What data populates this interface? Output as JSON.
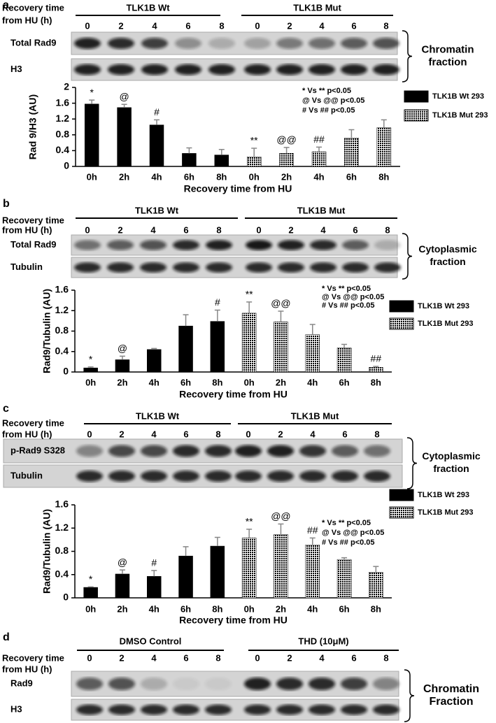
{
  "panel_labels": [
    "a",
    "b",
    "c",
    "d"
  ],
  "blots": [
    {
      "groups": [
        "TLK1B Wt",
        "TLK1B Mut"
      ],
      "time_header": [
        "Recovery time",
        "from HU (h)"
      ],
      "lanes": [
        "0",
        "2",
        "4",
        "6",
        "8"
      ],
      "rows": [
        "Total Rad9",
        "H3"
      ],
      "fraction": [
        "Chromatin",
        "fraction"
      ]
    },
    {
      "groups": [
        "TLK1B Wt",
        "TLK1B Mut"
      ],
      "time_header": [
        "Recovery time",
        "from  HU (h)"
      ],
      "lanes": [
        "0",
        "2",
        "4",
        "6",
        "8"
      ],
      "rows": [
        "Total Rad9",
        "Tubulin"
      ],
      "fraction": [
        "Cytoplasmic",
        "fraction"
      ]
    },
    {
      "groups": [
        "TLK1B Wt",
        "TLK1B Mut"
      ],
      "time_header": [
        "Recovery time",
        "from  HU  (h)"
      ],
      "lanes": [
        "0",
        "2",
        "4",
        "6",
        "8"
      ],
      "rows": [
        "p-Rad9 S328",
        "Tubulin"
      ],
      "fraction": [
        "Cytoplasmic",
        "fraction"
      ]
    },
    {
      "groups": [
        "DMSO Control",
        "THD (10μM)"
      ],
      "time_header": [
        "Recovery time",
        "from HU (h)"
      ],
      "lanes": [
        "0",
        "2",
        "4",
        "6",
        "8"
      ],
      "rows": [
        "Rad9",
        "H3"
      ],
      "fraction": [
        "Chromatin",
        "Fraction"
      ]
    }
  ],
  "chart_data": [
    {
      "type": "bar",
      "x_label": "Recovery time from HU",
      "y_label": "Rad 9/H3  (AU)",
      "categories": [
        "0h",
        "2h",
        "4h",
        "6h",
        "8h",
        "0h",
        "2h",
        "4h",
        "6h",
        "8h"
      ],
      "annotations": [
        "*",
        "@",
        "#",
        null,
        null,
        "**",
        "@@",
        "##",
        null,
        null
      ],
      "stats": [
        "* Vs ** p<0.05",
        "@ Vs @@ p<0.05",
        "# Vs ## p<0.05"
      ],
      "ylim": [
        0,
        2
      ],
      "yticks": [
        0,
        0.4,
        0.8,
        1.2,
        1.6,
        2
      ],
      "series": [
        {
          "name": "TLK1B Wt 293",
          "color": "#000000",
          "pattern": "solid",
          "values": [
            1.58,
            1.49,
            1.05,
            0.33,
            0.29,
            null,
            null,
            null,
            null,
            null
          ],
          "errors": [
            0.1,
            0.08,
            0.13,
            0.14,
            0.14,
            null,
            null,
            null,
            null,
            null
          ]
        },
        {
          "name": "TLK1B Mut 293",
          "color": "#000000",
          "pattern": "grid",
          "values": [
            null,
            null,
            null,
            null,
            null,
            0.24,
            0.33,
            0.37,
            0.72,
            0.98
          ],
          "errors": [
            null,
            null,
            null,
            null,
            null,
            0.22,
            0.15,
            0.12,
            0.21,
            0.2
          ]
        }
      ]
    },
    {
      "type": "bar",
      "x_label": "Recovery time from HU",
      "y_label": "Rad9/Tubulin (AU)",
      "categories": [
        "0h",
        "2h",
        "4h",
        "6h",
        "8h",
        "0h",
        "2h",
        "4h",
        "6h",
        "8h"
      ],
      "annotations": [
        "*",
        "@",
        null,
        null,
        "#",
        "**",
        "@@",
        null,
        null,
        "##"
      ],
      "stats": [
        "* Vs ** p<0.05",
        "@ Vs @@ p<0.05",
        "# Vs ## p<0.05"
      ],
      "ylim": [
        0,
        1.6
      ],
      "yticks": [
        0,
        0.4,
        0.8,
        1.2,
        1.6
      ],
      "series": [
        {
          "name": "TLK1B Wt 293",
          "color": "#000000",
          "pattern": "solid",
          "values": [
            0.08,
            0.24,
            0.44,
            0.9,
            0.99,
            null,
            null,
            null,
            null,
            null
          ],
          "errors": [
            0.02,
            0.07,
            0.02,
            0.22,
            0.22,
            null,
            null,
            null,
            null,
            null
          ]
        },
        {
          "name": "TLK1B Mut 293",
          "color": "#000000",
          "pattern": "grid",
          "values": [
            null,
            null,
            null,
            null,
            null,
            1.15,
            0.98,
            0.73,
            0.47,
            0.09
          ],
          "errors": [
            null,
            null,
            null,
            null,
            null,
            0.22,
            0.21,
            0.2,
            0.07,
            0.02
          ]
        }
      ]
    },
    {
      "type": "bar",
      "x_label": "Recovery time from HU",
      "y_label": "Rad9/Tubulin (AU)",
      "categories": [
        "0h",
        "2h",
        "4h",
        "6h",
        "8h",
        "0h",
        "2h",
        "4h",
        "6h",
        "8h"
      ],
      "annotations": [
        "*",
        "@",
        "#",
        null,
        null,
        "**",
        "@@",
        "##",
        null,
        null
      ],
      "stats": [
        "* Vs ** p<0.05",
        "@ Vs @@ p<0.05",
        "# Vs ## p<0.05"
      ],
      "ylim": [
        0,
        1.6
      ],
      "yticks": [
        0,
        0.4,
        0.8,
        1.2,
        1.6
      ],
      "series": [
        {
          "name": "TLK1B Wt 293",
          "color": "#000000",
          "pattern": "solid",
          "values": [
            0.18,
            0.41,
            0.37,
            0.72,
            0.89,
            null,
            null,
            null,
            null,
            null
          ],
          "errors": [
            0.01,
            0.07,
            0.1,
            0.16,
            0.15,
            null,
            null,
            null,
            null,
            null
          ]
        },
        {
          "name": "TLK1B Mut 293",
          "color": "#000000",
          "pattern": "grid",
          "values": [
            null,
            null,
            null,
            null,
            null,
            1.03,
            1.09,
            0.91,
            0.66,
            0.44
          ],
          "errors": [
            null,
            null,
            null,
            null,
            null,
            0.15,
            0.18,
            0.12,
            0.03,
            0.1
          ]
        }
      ]
    }
  ]
}
